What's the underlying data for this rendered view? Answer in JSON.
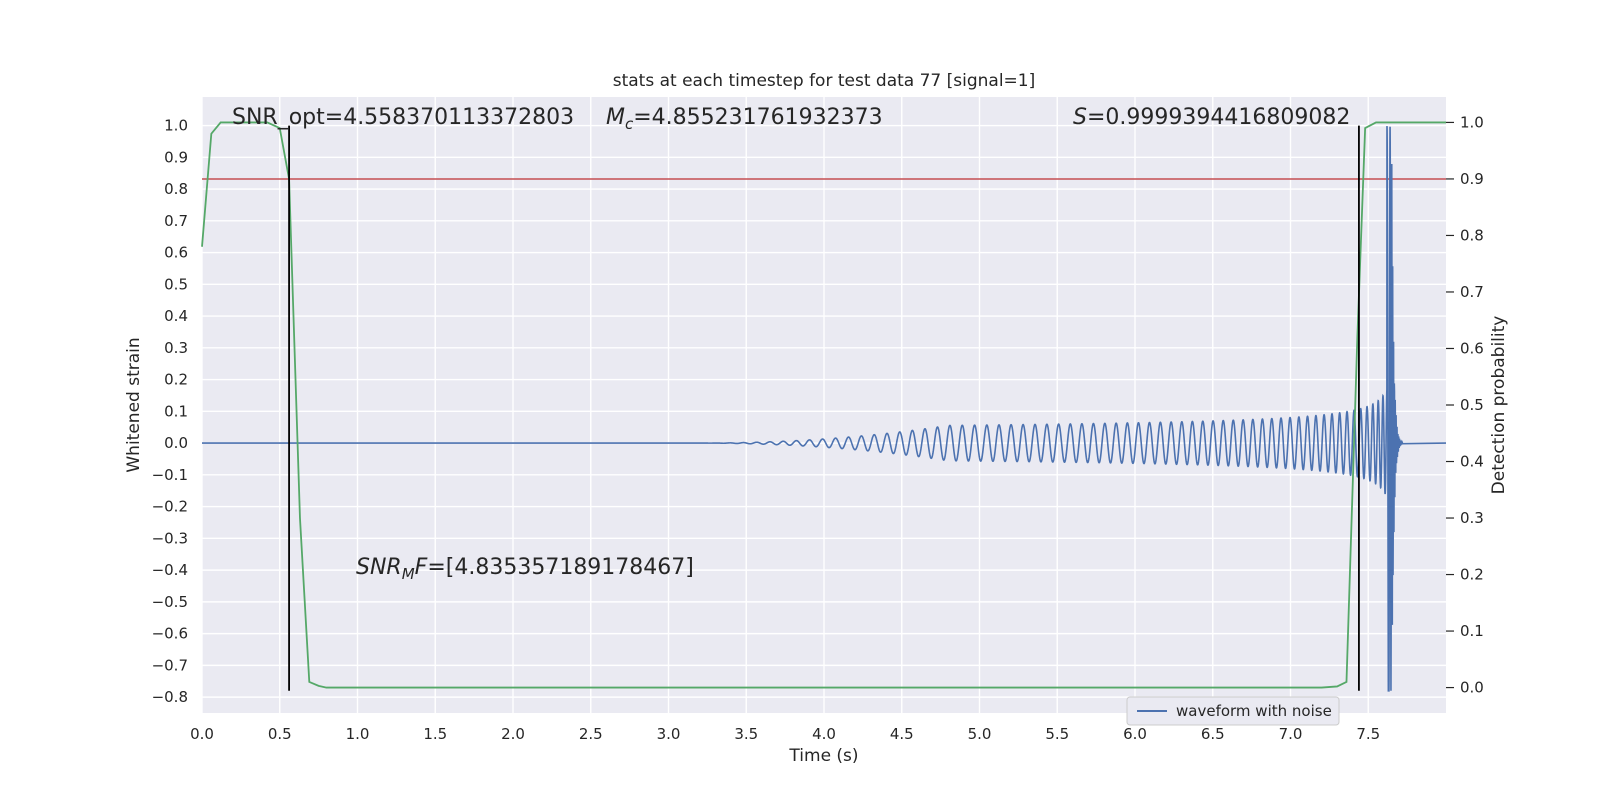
{
  "chart_data": {
    "type": "line",
    "title": "stats at each timestep for test data 77 [signal=1]",
    "xlabel": "Time (s)",
    "ylabel": "Whitened strain",
    "y2label": "Detection probability",
    "xlim": [
      0.0,
      8.0
    ],
    "ylim": [
      -0.85,
      1.09
    ],
    "y2lim": [
      -0.045,
      1.045
    ],
    "x_ticks": [
      "0.0",
      "0.5",
      "1.0",
      "1.5",
      "2.0",
      "2.5",
      "3.0",
      "3.5",
      "4.0",
      "4.5",
      "5.0",
      "5.5",
      "6.0",
      "6.5",
      "7.0",
      "7.5"
    ],
    "y_ticks": [
      "−0.8",
      "−0.7",
      "−0.6",
      "−0.5",
      "−0.4",
      "−0.3",
      "−0.2",
      "−0.1",
      "0.0",
      "0.1",
      "0.2",
      "0.3",
      "0.4",
      "0.5",
      "0.6",
      "0.7",
      "0.8",
      "0.9",
      "1.0"
    ],
    "y2_ticks": [
      "0.0",
      "0.1",
      "0.2",
      "0.3",
      "0.4",
      "0.5",
      "0.6",
      "0.7",
      "0.8",
      "0.9",
      "1.0"
    ],
    "grid": true,
    "legend_position": "lower-right",
    "series": [
      {
        "name": "waveform with noise",
        "axis": "left",
        "color": "#4c72b0",
        "kind": "chirp",
        "onset_time": 3.2,
        "merger_time": 7.65,
        "peak_amplitude": 1.0,
        "ringdown_end": 7.72
      },
      {
        "axis": "right",
        "color": "#55a868",
        "x": [
          0.0,
          0.06,
          0.12,
          0.18,
          0.3,
          0.42,
          0.5,
          0.56,
          0.63,
          0.69,
          0.75,
          0.8,
          0.9,
          7.2,
          7.3,
          7.36,
          7.43,
          7.48,
          7.55,
          8.0
        ],
        "y": [
          0.78,
          0.98,
          1.0,
          1.0,
          1.0,
          1.0,
          0.99,
          0.9,
          0.3,
          0.01,
          0.003,
          0.0,
          0.0,
          0.0,
          0.002,
          0.01,
          0.62,
          0.99,
          1.0,
          1.0
        ]
      }
    ],
    "hlines": [
      {
        "axis": "right",
        "y": 0.9,
        "color": "#c44e52"
      }
    ],
    "vlines": [
      {
        "x": 0.56,
        "ymin": -0.78,
        "ymax": 1.0,
        "color": "#000000"
      },
      {
        "x": 7.44,
        "ymin": -0.78,
        "ymax": 1.0,
        "color": "#000000"
      }
    ],
    "annotations": {
      "snr_opt": "SNR_opt=4.558370113372803",
      "mc_symbol": "M",
      "mc_sub": "c",
      "mc_value": "=4.855231761932373",
      "s_symbol": "S",
      "s_value": "=0.9999394416809082",
      "snrmf_symbol": "SNR",
      "snrmf_sub": "M",
      "snrmf_symbol2": "F",
      "snrmf_value": "=[4.835357189178467]"
    },
    "legend_label": "waveform with noise"
  }
}
